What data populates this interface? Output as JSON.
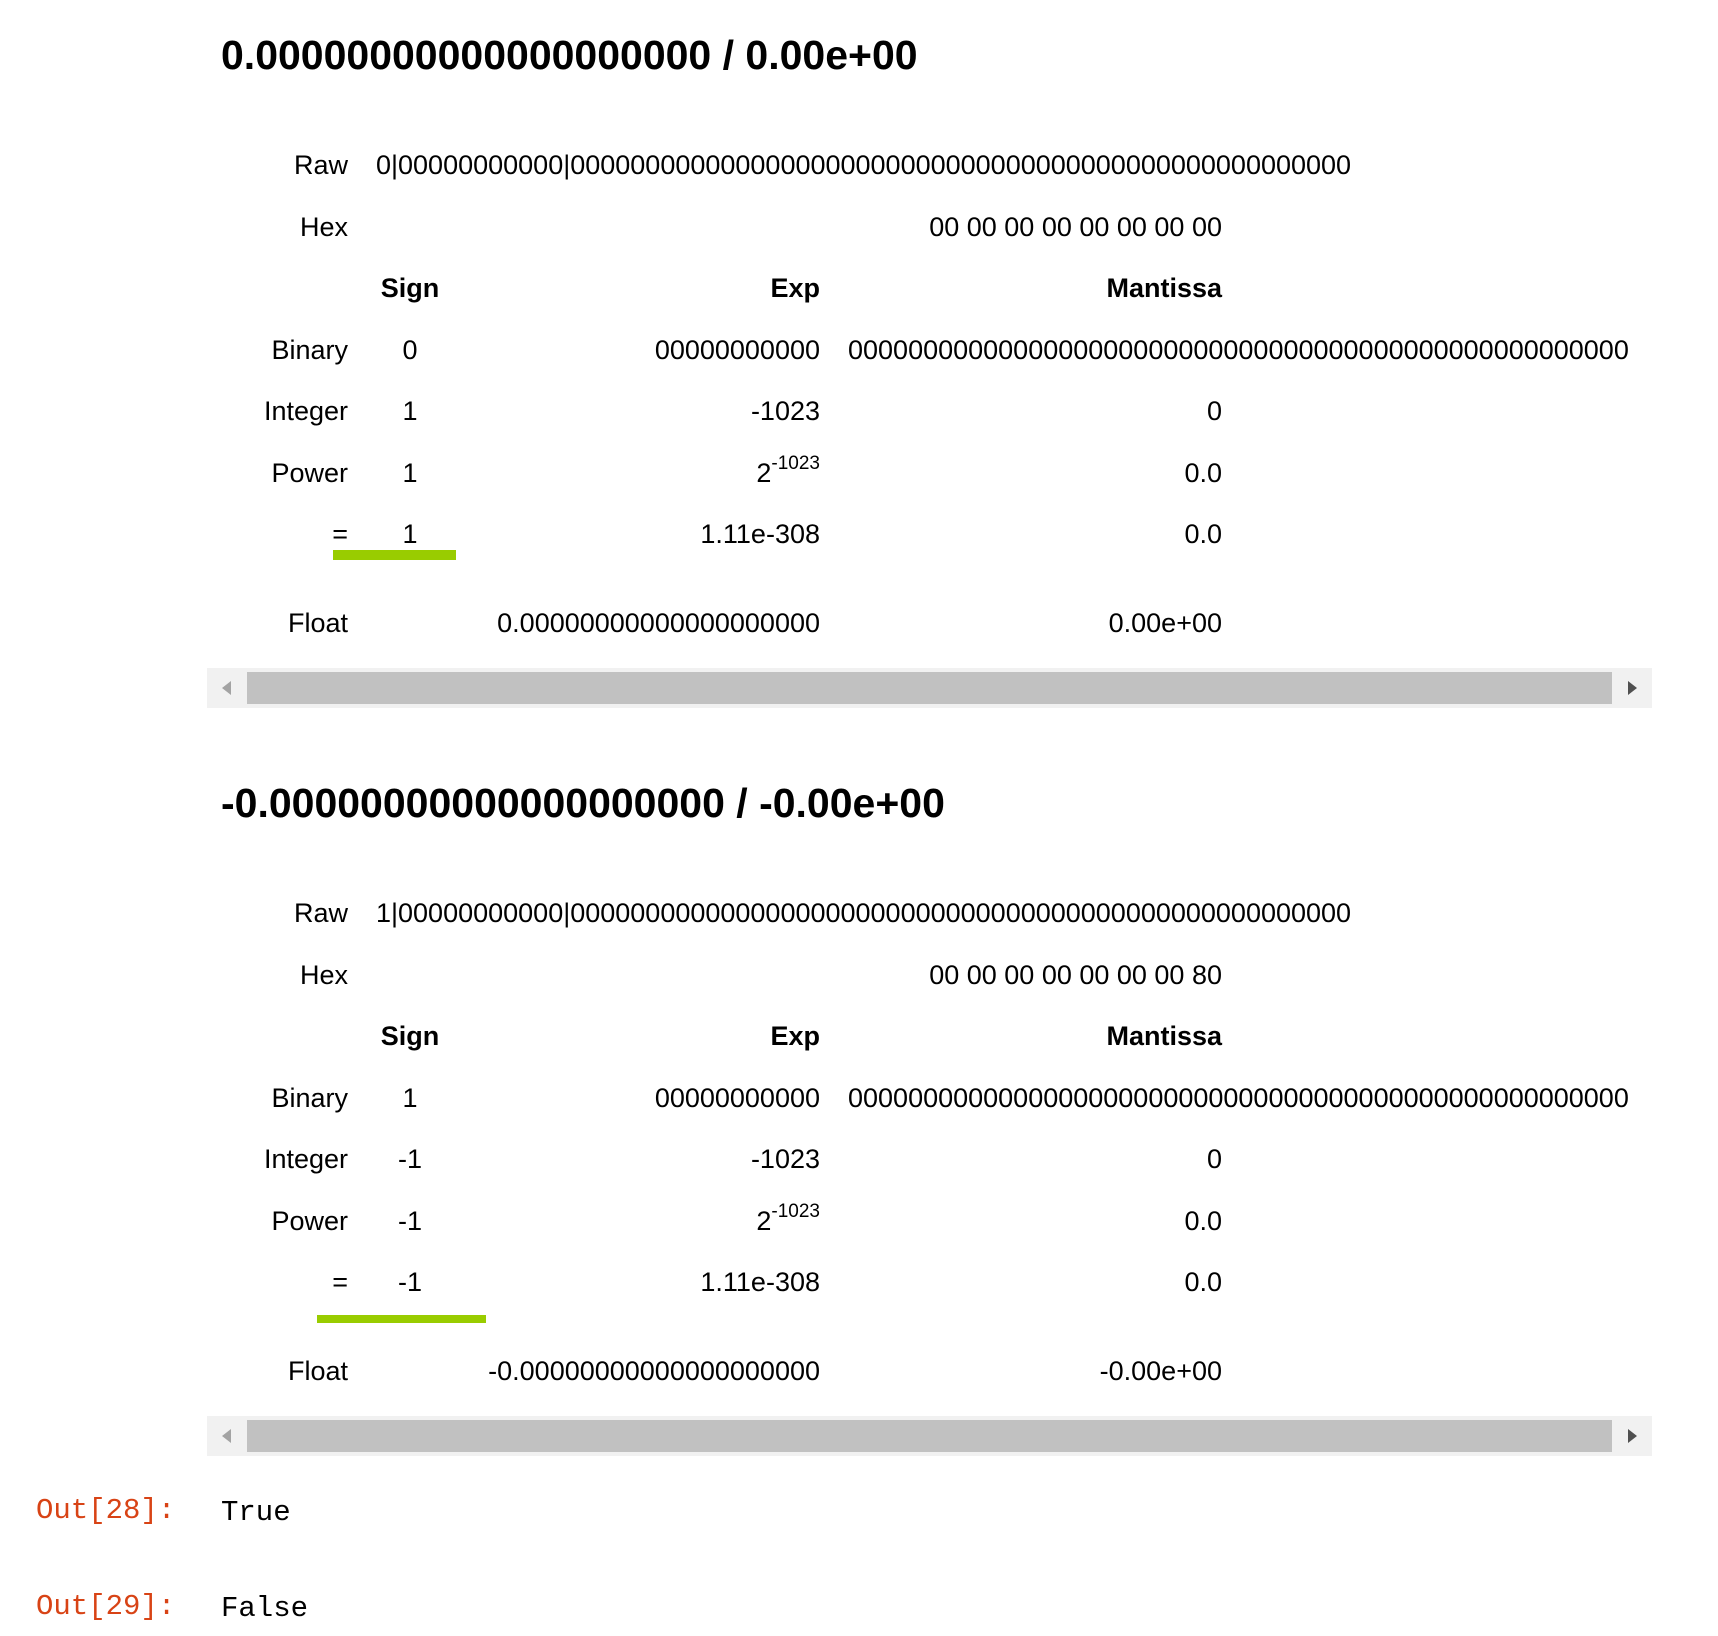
{
  "blocks": [
    {
      "title": "0.00000000000000000000 / 0.00e+00",
      "raw_label": "Raw",
      "raw_value": "0|00000000000|0000000000000000000000000000000000000000000000000000",
      "hex_label": "Hex",
      "hex_value": "00 00 00 00 00 00 00 00",
      "col_sign": "Sign",
      "col_exp": "Exp",
      "col_mantissa": "Mantissa",
      "binary": {
        "label": "Binary",
        "sign": "0",
        "exp": "00000000000",
        "mantissa": "0000000000000000000000000000000000000000000000000000"
      },
      "integer": {
        "label": "Integer",
        "sign": "1",
        "exp": "-1023",
        "mantissa": "0"
      },
      "power": {
        "label": "Power",
        "sign": "1",
        "exp_base": "2",
        "exp_power": "-1023",
        "mantissa": "0.0"
      },
      "equals": {
        "label": "=",
        "sign": "1",
        "exp": "1.11e-308",
        "mantissa": "0.0"
      },
      "float": {
        "label": "Float",
        "exp": "0.00000000000000000000",
        "mantissa": "0.00e+00"
      }
    },
    {
      "title": "-0.00000000000000000000 / -0.00e+00",
      "raw_label": "Raw",
      "raw_value": "1|00000000000|0000000000000000000000000000000000000000000000000000",
      "hex_label": "Hex",
      "hex_value": "00 00 00 00 00 00 00 80",
      "col_sign": "Sign",
      "col_exp": "Exp",
      "col_mantissa": "Mantissa",
      "binary": {
        "label": "Binary",
        "sign": "1",
        "exp": "00000000000",
        "mantissa": "0000000000000000000000000000000000000000000000000000"
      },
      "integer": {
        "label": "Integer",
        "sign": "-1",
        "exp": "-1023",
        "mantissa": "0"
      },
      "power": {
        "label": "Power",
        "sign": "-1",
        "exp_base": "2",
        "exp_power": "-1023",
        "mantissa": "0.0"
      },
      "equals": {
        "label": "=",
        "sign": "-1",
        "exp": "1.11e-308",
        "mantissa": "0.0"
      },
      "float": {
        "label": "Float",
        "exp": "-0.00000000000000000000",
        "mantissa": "-0.00e+00"
      }
    }
  ],
  "outputs": [
    {
      "prompt": "Out[28]:",
      "value": "True"
    },
    {
      "prompt": "Out[29]:",
      "value": "False"
    }
  ],
  "colors": {
    "prompt": "#d84315",
    "underline": "#99cc00",
    "scrollbar_track": "#f1f1f1",
    "scrollbar_thumb": "#c1c1c1"
  }
}
